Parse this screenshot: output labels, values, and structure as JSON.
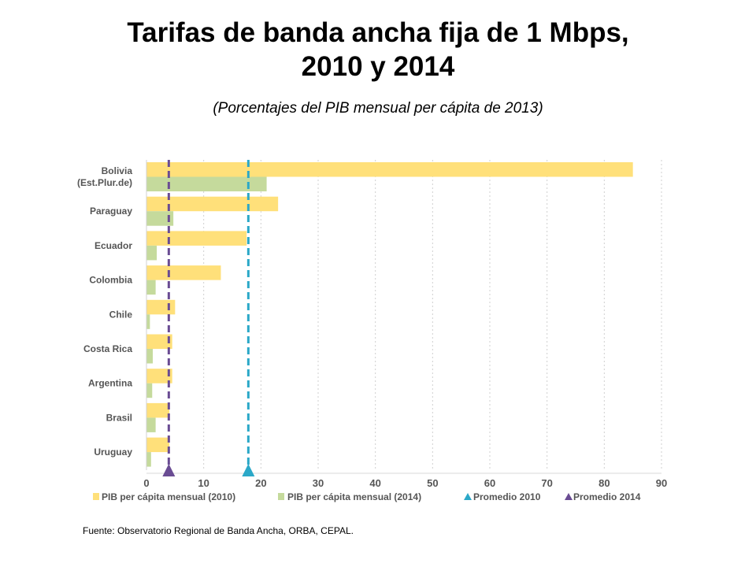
{
  "title": {
    "line1": "Tarifas de banda ancha fija de 1 Mbps,",
    "line2": "2010 y 2014",
    "subtitle": "(Porcentajes del PIB mensual per cápita de 2013)"
  },
  "source": "Fuente: Observatorio Regional de Banda Ancha, ORBA, CEPAL.",
  "chart_data": {
    "type": "bar",
    "orientation": "horizontal",
    "categories": [
      [
        "Bolivia",
        "(Est.Plur.de)"
      ],
      [
        "Paraguay"
      ],
      [
        "Ecuador"
      ],
      [
        "Colombia"
      ],
      [
        "Chile"
      ],
      [
        "Costa Rica"
      ],
      [
        "Argentina"
      ],
      [
        "Brasil"
      ],
      [
        "Uruguay"
      ]
    ],
    "series": [
      {
        "name": "PIB per cápita mensual (2010)",
        "color": "#FFE07A",
        "values": [
          85,
          23,
          17.5,
          13,
          5,
          4.5,
          4.5,
          4,
          4
        ]
      },
      {
        "name": "PIB per cápita mensual (2014)",
        "color": "#C5DA9C",
        "values": [
          21,
          4.7,
          1.8,
          1.6,
          0.6,
          1.1,
          1.0,
          1.6,
          0.8
        ]
      }
    ],
    "reference_lines": [
      {
        "name": "Promedio 2010",
        "value": 17.8,
        "color": "#2BA8C8",
        "marker": "triangle"
      },
      {
        "name": "Promedio 2014",
        "value": 3.9,
        "color": "#6A4C93",
        "marker": "triangle"
      }
    ],
    "xlim": [
      0,
      90
    ],
    "xticks": [
      0,
      10,
      20,
      30,
      40,
      50,
      60,
      70,
      80,
      90
    ],
    "grid": "vertical dashed",
    "legend_position": "bottom"
  }
}
